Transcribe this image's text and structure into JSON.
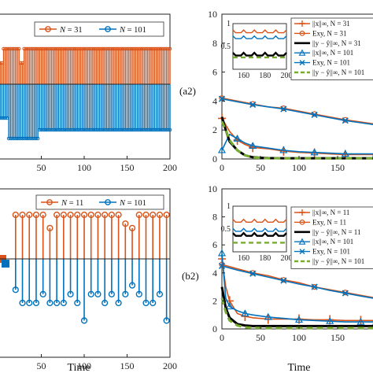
{
  "colors": {
    "orange": "#d95319",
    "blue": "#0072bd",
    "black": "#000000",
    "green": "#77ac30",
    "gray": "#888888"
  },
  "panel_labels": {
    "a2": "(a2)",
    "b2": "(b2)"
  },
  "axis_labels": {
    "time_bottom_left": "Time",
    "time_bottom_right": "Time"
  },
  "chart_data": [
    {
      "id": "a1",
      "type": "stem",
      "xlim": [
        0,
        200
      ],
      "xticks": [
        50,
        100,
        150,
        200
      ],
      "series": [
        {
          "name": "N = 31",
          "legend_label": "N = 31",
          "color": "#d95319",
          "step": 2,
          "low_level": 0.5,
          "high_level": 1,
          "low_intervals": [
            [
              0,
              6
            ],
            [
              25,
              30
            ]
          ]
        },
        {
          "name": "N = 101",
          "legend_label": "N = 101",
          "color": "#0072bd",
          "step": 2,
          "low_level": -0.5,
          "low_level2": -1,
          "low_intervals": [
            [
              0,
              12
            ],
            [
              4,
              47
            ]
          ]
        }
      ]
    },
    {
      "id": "a2",
      "type": "line",
      "xlim": [
        0,
        200
      ],
      "ylim": [
        0,
        10
      ],
      "xticks": [
        0,
        50,
        100,
        150
      ],
      "yticks": [
        0,
        2,
        4,
        6,
        8,
        10
      ],
      "legend": [
        {
          "label": "||x||∞, N = 31",
          "color": "#d95319",
          "marker": "+"
        },
        {
          "label": "Exy, N = 31",
          "color": "#d95319",
          "marker": "o"
        },
        {
          "label": "||y − ŷ||∞, N = 31",
          "color": "#000000",
          "marker": ""
        },
        {
          "label": "||x||∞, N = 101",
          "color": "#0072bd",
          "marker": "^"
        },
        {
          "label": "Exy, N = 101",
          "color": "#0072bd",
          "marker": "x"
        },
        {
          "label": "||y − ŷ||∞, N = 101",
          "color": "#77ac30",
          "marker": ""
        }
      ],
      "series": [
        {
          "name": "Exy, N = 31",
          "color": "#d95319",
          "x": [
            0,
            20,
            40,
            60,
            80,
            100,
            120,
            140,
            160,
            180,
            200
          ],
          "y": [
            4.2,
            4.0,
            3.8,
            3.6,
            3.5,
            3.3,
            3.1,
            2.9,
            2.7,
            2.55,
            2.4
          ]
        },
        {
          "name": "Exy, N = 101",
          "color": "#0072bd",
          "x": [
            0,
            20,
            40,
            60,
            80,
            100,
            120,
            140,
            160,
            180,
            200
          ],
          "y": [
            4.15,
            3.95,
            3.75,
            3.6,
            3.45,
            3.25,
            3.05,
            2.85,
            2.65,
            2.5,
            2.35
          ]
        },
        {
          "name": "||x||∞, N = 31",
          "color": "#d95319",
          "x": [
            0,
            10,
            20,
            30,
            40,
            60,
            80,
            100,
            120,
            140,
            160,
            180,
            200
          ],
          "y": [
            2.8,
            1.9,
            1.3,
            1.0,
            0.8,
            0.7,
            0.55,
            0.45,
            0.4,
            0.35,
            0.3,
            0.3,
            0.3
          ]
        },
        {
          "name": "||x||∞, N = 101",
          "color": "#0072bd",
          "x": [
            0,
            10,
            20,
            30,
            40,
            60,
            80,
            100,
            120,
            140,
            160,
            180,
            200
          ],
          "y": [
            0.6,
            1.7,
            1.4,
            1.1,
            0.9,
            0.75,
            0.6,
            0.5,
            0.45,
            0.4,
            0.35,
            0.35,
            0.35
          ]
        },
        {
          "name": "||y − ŷ||∞, N = 31",
          "color": "#000000",
          "x": [
            0,
            5,
            10,
            20,
            30,
            40,
            50,
            60,
            80,
            200
          ],
          "y": [
            2.9,
            2.0,
            1.2,
            0.6,
            0.25,
            0.12,
            0.08,
            0.06,
            0.05,
            0.05
          ]
        },
        {
          "name": "||y − ŷ||∞, N = 101",
          "color": "#77ac30",
          "x": [
            0,
            5,
            10,
            20,
            30,
            40,
            50,
            60,
            80,
            200
          ],
          "y": [
            2.6,
            2.0,
            1.3,
            0.6,
            0.25,
            0.1,
            0.07,
            0.05,
            0.05,
            0.05
          ]
        }
      ],
      "inset": {
        "xlim": [
          150,
          200
        ],
        "ylim": [
          0,
          1
        ],
        "xticks": [
          160,
          180,
          200
        ],
        "yticks": [
          0.5,
          1
        ],
        "series": [
          {
            "color": "#d95319",
            "y": 0.8
          },
          {
            "color": "#0072bd",
            "y": 0.67
          },
          {
            "color": "#000000",
            "y": 0.3
          },
          {
            "color": "#77ac30",
            "y": 0.26
          }
        ]
      }
    },
    {
      "id": "b1",
      "type": "stem",
      "xlim": [
        0,
        200
      ],
      "xticks": [
        50,
        100,
        150,
        200
      ],
      "series": [
        {
          "name": "N = 11",
          "legend_label": "N = 11",
          "color": "#d95319",
          "x": [
            20,
            28,
            36,
            44,
            52,
            60,
            68,
            76,
            84,
            92,
            100,
            108,
            116,
            124,
            132,
            140,
            148,
            156,
            164,
            172,
            180,
            188,
            196
          ],
          "y": [
            1,
            1,
            1,
            1,
            1,
            0.7,
            1,
            1,
            1,
            1,
            1,
            1,
            1,
            1,
            1,
            1,
            0.8,
            0.7,
            1,
            1,
            1,
            1,
            1
          ]
        },
        {
          "name": "N = 101",
          "legend_label": "N = 101",
          "color": "#0072bd",
          "x": [
            20,
            28,
            36,
            44,
            52,
            60,
            68,
            76,
            84,
            92,
            100,
            108,
            116,
            124,
            132,
            140,
            148,
            156,
            164,
            172,
            180,
            188,
            196
          ],
          "y": [
            -0.7,
            -1,
            -1,
            -1,
            -0.8,
            -1,
            -1,
            -1,
            -0.8,
            -1,
            -1.4,
            -0.8,
            -0.8,
            -1,
            -0.8,
            -1,
            -0.8,
            -0.6,
            -0.8,
            -1,
            -1,
            -0.8,
            -1.4
          ]
        }
      ]
    },
    {
      "id": "b2",
      "type": "line",
      "xlim": [
        0,
        200
      ],
      "ylim": [
        0,
        10
      ],
      "xticks": [
        0,
        50,
        100,
        150
      ],
      "yticks": [
        0,
        2,
        4,
        6,
        8,
        10
      ],
      "legend": [
        {
          "label": "||x||∞, N = 11",
          "color": "#d95319",
          "marker": "+"
        },
        {
          "label": "Exy, N = 11",
          "color": "#d95319",
          "marker": "o"
        },
        {
          "label": "||y − ŷ||∞, N = 11",
          "color": "#000000",
          "marker": ""
        },
        {
          "label": "||x||∞, N = 101",
          "color": "#0072bd",
          "marker": "^"
        },
        {
          "label": "Exy, N = 101",
          "color": "#0072bd",
          "marker": "x"
        },
        {
          "label": "||y − ŷ||∞, N = 101",
          "color": "#77ac30",
          "marker": ""
        }
      ],
      "series": [
        {
          "name": "Exy, N = 11",
          "color": "#d95319",
          "x": [
            0,
            20,
            40,
            60,
            80,
            100,
            120,
            140,
            160,
            180,
            200
          ],
          "y": [
            4.6,
            4.3,
            4.0,
            3.8,
            3.5,
            3.3,
            3.0,
            2.8,
            2.6,
            2.4,
            2.2
          ]
        },
        {
          "name": "Exy, N = 101",
          "color": "#0072bd",
          "x": [
            0,
            20,
            40,
            60,
            80,
            100,
            120,
            140,
            160,
            180,
            200
          ],
          "y": [
            4.5,
            4.2,
            3.95,
            3.7,
            3.45,
            3.2,
            3.0,
            2.75,
            2.55,
            2.35,
            2.15
          ]
        },
        {
          "name": "||x||∞, N = 11",
          "color": "#d95319",
          "x": [
            0,
            5,
            10,
            20,
            30,
            40,
            60,
            80,
            100,
            120,
            140,
            160,
            180,
            200
          ],
          "y": [
            5.0,
            3.0,
            2.0,
            1.1,
            0.9,
            0.8,
            0.7,
            0.7,
            0.7,
            0.65,
            0.65,
            0.6,
            0.6,
            0.6
          ]
        },
        {
          "name": "||x||∞, N = 101",
          "color": "#0072bd",
          "x": [
            0,
            5,
            10,
            20,
            30,
            40,
            60,
            80,
            100,
            120,
            140,
            160,
            180,
            200
          ],
          "y": [
            5.4,
            2.2,
            1.6,
            1.3,
            1.1,
            1.0,
            0.85,
            0.75,
            0.65,
            0.6,
            0.55,
            0.5,
            0.5,
            0.5
          ]
        },
        {
          "name": "||y − ŷ||∞, N = 11",
          "color": "#000000",
          "x": [
            0,
            5,
            10,
            20,
            30,
            40,
            60,
            200
          ],
          "y": [
            3.0,
            1.5,
            0.8,
            0.35,
            0.25,
            0.2,
            0.2,
            0.2
          ]
        },
        {
          "name": "||y − ŷ||∞, N = 101",
          "color": "#77ac30",
          "x": [
            0,
            5,
            10,
            20,
            30,
            40,
            60,
            200
          ],
          "y": [
            2.2,
            1.2,
            0.6,
            0.25,
            0.12,
            0.08,
            0.06,
            0.06
          ]
        }
      ],
      "inset": {
        "xlim": [
          150,
          200
        ],
        "ylim": [
          0,
          1
        ],
        "xticks": [
          160,
          180,
          200
        ],
        "yticks": [
          0.5,
          1
        ],
        "series": [
          {
            "color": "#d95319",
            "y": 0.65
          },
          {
            "color": "#0072bd",
            "y": 0.45
          },
          {
            "color": "#000000",
            "y": 0.35
          },
          {
            "color": "#77ac30",
            "y": 0.2
          }
        ]
      }
    }
  ]
}
